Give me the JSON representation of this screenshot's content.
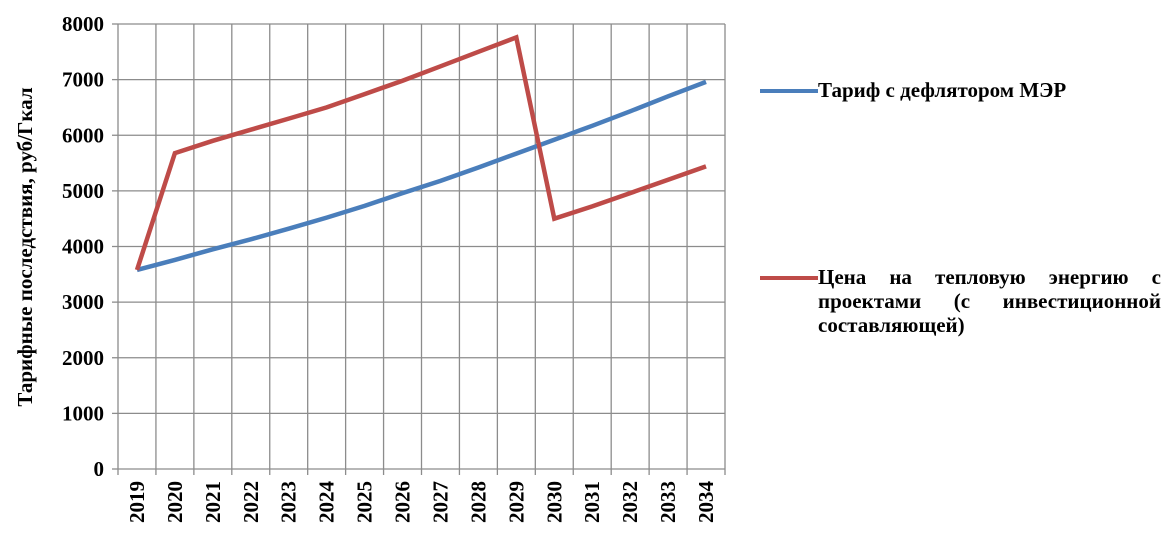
{
  "chart_data": {
    "type": "line",
    "title": "",
    "xlabel": "",
    "ylabel": "Тарифные последствия, руб/Гкал",
    "x": [
      "2019",
      "2020",
      "2021",
      "2022",
      "2023",
      "2024",
      "2025",
      "2026",
      "2027",
      "2028",
      "2029",
      "2030",
      "2031",
      "2032",
      "2033",
      "2034"
    ],
    "ylim": [
      0,
      8000
    ],
    "yticks": [
      "0",
      "1000",
      "2000",
      "3000",
      "4000",
      "5000",
      "6000",
      "7000",
      "8000"
    ],
    "grid": true,
    "legend_position": "right",
    "series": [
      {
        "name": "Тариф с дефлятором МЭР",
        "color": "#4a7ebb",
        "values": [
          3580,
          3760,
          3950,
          4130,
          4320,
          4520,
          4730,
          4960,
          5180,
          5420,
          5670,
          5920,
          6170,
          6430,
          6700,
          6960
        ]
      },
      {
        "name": "Цена на тепловую энергию с проектами (с инвестиционной составляющей)",
        "color": "#be4b48",
        "values": [
          3580,
          5680,
          5900,
          6100,
          6300,
          6500,
          6740,
          6980,
          7240,
          7500,
          7760,
          4500,
          4720,
          4960,
          5200,
          5440
        ]
      }
    ]
  }
}
